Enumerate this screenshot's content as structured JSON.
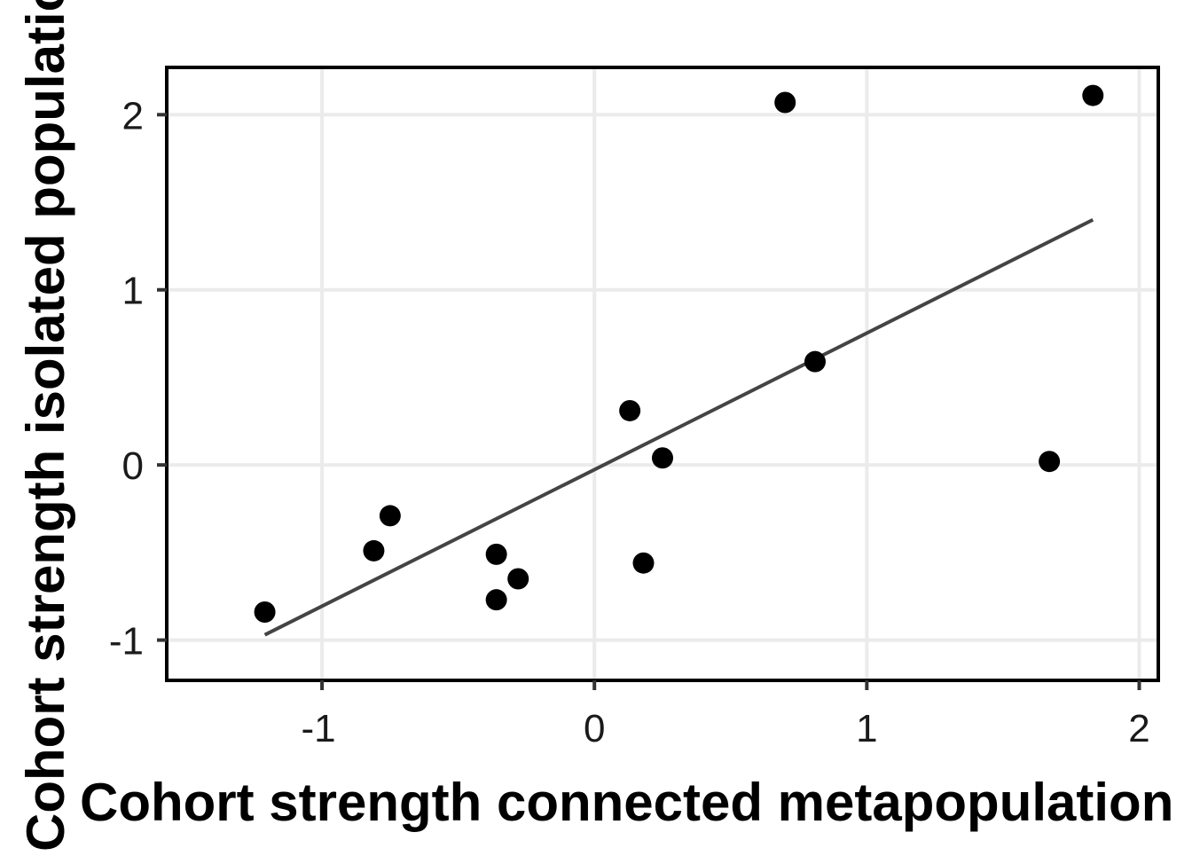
{
  "chart_data": {
    "type": "scatter",
    "title": "",
    "xlabel": "Cohort strength connected metapopulation",
    "ylabel": "Cohort strength isolated population",
    "xlim": [
      -1.57,
      2.07
    ],
    "ylim": [
      -1.23,
      2.27
    ],
    "x_ticks": [
      -1,
      0,
      1,
      2
    ],
    "y_ticks": [
      -1,
      0,
      1,
      2
    ],
    "grid": true,
    "points": [
      {
        "x": -1.21,
        "y": -0.84
      },
      {
        "x": -0.81,
        "y": -0.49
      },
      {
        "x": -0.75,
        "y": -0.29
      },
      {
        "x": -0.36,
        "y": -0.51
      },
      {
        "x": -0.36,
        "y": -0.77
      },
      {
        "x": -0.28,
        "y": -0.65
      },
      {
        "x": 0.13,
        "y": 0.31
      },
      {
        "x": 0.18,
        "y": -0.56
      },
      {
        "x": 0.25,
        "y": 0.04
      },
      {
        "x": 0.7,
        "y": 2.07
      },
      {
        "x": 0.81,
        "y": 0.59
      },
      {
        "x": 1.67,
        "y": 0.02
      },
      {
        "x": 1.83,
        "y": 2.11
      }
    ],
    "fit_line": {
      "x": [
        -1.21,
        1.83
      ],
      "y": [
        -0.97,
        1.4
      ]
    },
    "colors": {
      "points": "#000000",
      "fit_line": "#444444",
      "grid": "#ebebeb",
      "panel_border": "#000000"
    }
  }
}
